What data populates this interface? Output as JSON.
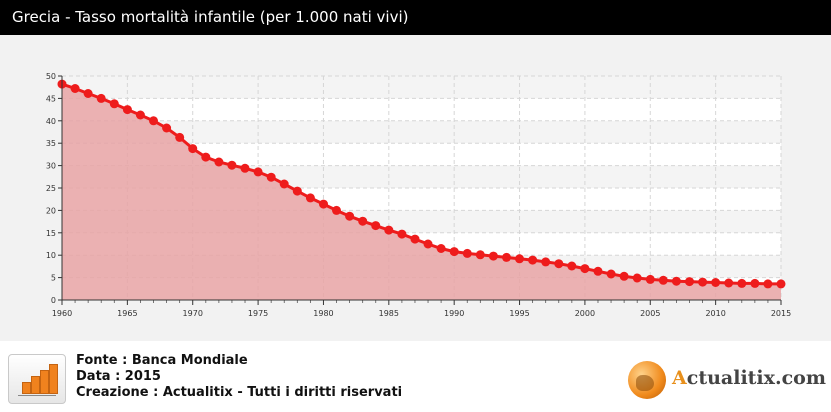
{
  "header": {
    "title": "Grecia - Tasso mortalità infantile (per 1.000 nati vivi)"
  },
  "chart_data": {
    "type": "area",
    "title": "Grecia - Tasso mortalità infantile (per 1.000 nati vivi)",
    "xlabel": "",
    "ylabel": "",
    "xlim": [
      1960,
      2015
    ],
    "ylim": [
      0,
      50
    ],
    "x_ticks": [
      "1960",
      "1965",
      "1970",
      "1975",
      "1980",
      "1985",
      "1990",
      "1995",
      "2000",
      "2005",
      "2010",
      "2015"
    ],
    "y_ticks": [
      "0",
      "5",
      "10",
      "15",
      "20",
      "25",
      "30",
      "35",
      "40",
      "45",
      "50"
    ],
    "grid": true,
    "colors": {
      "line": "#ee1c1c",
      "fill": "#e8a3a5",
      "plot_bg": "#ffffff",
      "band": "#f4f4f4"
    },
    "series": [
      {
        "x": [
          1960,
          1961,
          1962,
          1963,
          1964,
          1965,
          1966,
          1967,
          1968,
          1969,
          1970,
          1971,
          1972,
          1973,
          1974,
          1975,
          1976,
          1977,
          1978,
          1979,
          1980,
          1981,
          1982,
          1983,
          1984,
          1985,
          1986,
          1987,
          1988,
          1989,
          1990,
          1991,
          1992,
          1993,
          1994,
          1995,
          1996,
          1997,
          1998,
          1999,
          2000,
          2001,
          2002,
          2003,
          2004,
          2005,
          2006,
          2007,
          2008,
          2009,
          2010,
          2011,
          2012,
          2013,
          2014,
          2015
        ],
        "values": [
          48.2,
          47.2,
          46.1,
          45.0,
          43.8,
          42.5,
          41.3,
          40.0,
          38.4,
          36.3,
          33.8,
          31.9,
          30.8,
          30.1,
          29.4,
          28.6,
          27.4,
          25.9,
          24.3,
          22.8,
          21.4,
          20.0,
          18.7,
          17.6,
          16.6,
          15.6,
          14.7,
          13.6,
          12.5,
          11.5,
          10.8,
          10.4,
          10.1,
          9.8,
          9.5,
          9.2,
          8.9,
          8.5,
          8.1,
          7.6,
          7.0,
          6.4,
          5.8,
          5.3,
          4.9,
          4.6,
          4.4,
          4.2,
          4.1,
          4.0,
          3.9,
          3.8,
          3.7,
          3.7,
          3.6,
          3.6
        ]
      }
    ]
  },
  "footer": {
    "source": "Fonte : Banca Mondiale",
    "date": "Data : 2015",
    "credit": "Creazione : Actualitix - Tutti i diritti riservati",
    "icon": "bar-chart-icon"
  },
  "logo": {
    "first_letter": "A",
    "rest": "ctualitix.com",
    "icon": "globe-icon"
  }
}
